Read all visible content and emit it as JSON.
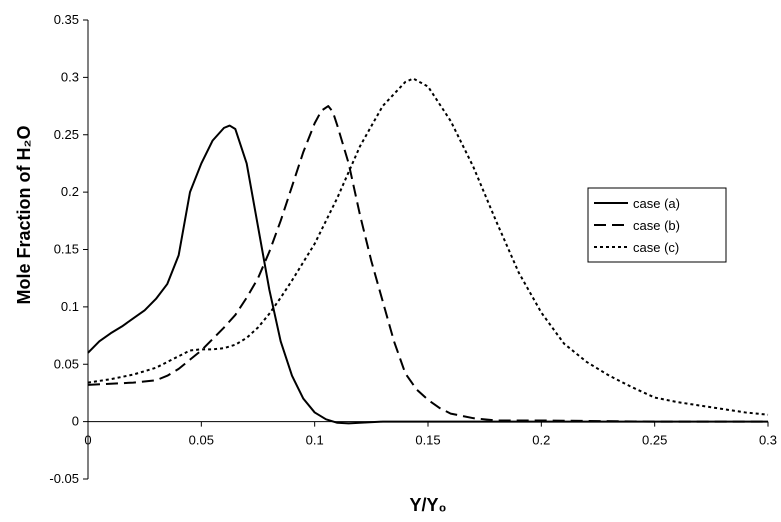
{
  "chart_data": {
    "type": "line",
    "xlabel": "Y/Y₀",
    "ylabel": "Mole Fraction of H₂O",
    "xlim": [
      0,
      0.3
    ],
    "ylim": [
      -0.05,
      0.35
    ],
    "x_ticks": [
      "0",
      "0.05",
      "0.1",
      "0.15",
      "0.2",
      "0.25",
      "0.3"
    ],
    "y_ticks": [
      "-0.05",
      "0",
      "0.05",
      "0.1",
      "0.15",
      "0.2",
      "0.25",
      "0.3",
      "0.35"
    ],
    "grid": false,
    "legend_position": "right",
    "series": [
      {
        "name": "case (a)",
        "style": "solid",
        "points": [
          [
            0,
            0.06
          ],
          [
            0.005,
            0.07
          ],
          [
            0.01,
            0.077
          ],
          [
            0.015,
            0.083
          ],
          [
            0.02,
            0.09
          ],
          [
            0.025,
            0.097
          ],
          [
            0.03,
            0.107
          ],
          [
            0.035,
            0.12
          ],
          [
            0.04,
            0.145
          ],
          [
            0.045,
            0.2
          ],
          [
            0.05,
            0.225
          ],
          [
            0.055,
            0.245
          ],
          [
            0.06,
            0.256
          ],
          [
            0.0625,
            0.258
          ],
          [
            0.065,
            0.255
          ],
          [
            0.07,
            0.225
          ],
          [
            0.075,
            0.17
          ],
          [
            0.08,
            0.115
          ],
          [
            0.085,
            0.07
          ],
          [
            0.09,
            0.04
          ],
          [
            0.095,
            0.02
          ],
          [
            0.1,
            0.008
          ],
          [
            0.105,
            0.002
          ],
          [
            0.11,
            -0.001
          ],
          [
            0.115,
            -0.0015
          ],
          [
            0.12,
            -0.001
          ],
          [
            0.13,
            0
          ],
          [
            0.15,
            0
          ],
          [
            0.2,
            0
          ],
          [
            0.25,
            0
          ],
          [
            0.3,
            0
          ]
        ]
      },
      {
        "name": "case (b)",
        "style": "dashed",
        "points": [
          [
            0,
            0.032
          ],
          [
            0.01,
            0.033
          ],
          [
            0.02,
            0.034
          ],
          [
            0.03,
            0.036
          ],
          [
            0.035,
            0.04
          ],
          [
            0.04,
            0.046
          ],
          [
            0.045,
            0.054
          ],
          [
            0.05,
            0.062
          ],
          [
            0.055,
            0.072
          ],
          [
            0.06,
            0.082
          ],
          [
            0.065,
            0.093
          ],
          [
            0.07,
            0.108
          ],
          [
            0.075,
            0.125
          ],
          [
            0.08,
            0.148
          ],
          [
            0.085,
            0.175
          ],
          [
            0.09,
            0.205
          ],
          [
            0.095,
            0.235
          ],
          [
            0.1,
            0.26
          ],
          [
            0.103,
            0.271
          ],
          [
            0.106,
            0.275
          ],
          [
            0.108,
            0.27
          ],
          [
            0.11,
            0.258
          ],
          [
            0.115,
            0.225
          ],
          [
            0.12,
            0.18
          ],
          [
            0.125,
            0.14
          ],
          [
            0.13,
            0.105
          ],
          [
            0.135,
            0.07
          ],
          [
            0.14,
            0.042
          ],
          [
            0.145,
            0.028
          ],
          [
            0.15,
            0.019
          ],
          [
            0.155,
            0.012
          ],
          [
            0.16,
            0.007
          ],
          [
            0.17,
            0.003
          ],
          [
            0.18,
            0.001
          ],
          [
            0.2,
            0.001
          ],
          [
            0.25,
            0
          ],
          [
            0.3,
            0
          ]
        ]
      },
      {
        "name": "case (c)",
        "style": "dotted",
        "points": [
          [
            0,
            0.034
          ],
          [
            0.01,
            0.037
          ],
          [
            0.02,
            0.041
          ],
          [
            0.03,
            0.047
          ],
          [
            0.04,
            0.057
          ],
          [
            0.045,
            0.062
          ],
          [
            0.05,
            0.063
          ],
          [
            0.055,
            0.063
          ],
          [
            0.06,
            0.064
          ],
          [
            0.065,
            0.067
          ],
          [
            0.07,
            0.073
          ],
          [
            0.075,
            0.082
          ],
          [
            0.08,
            0.094
          ],
          [
            0.085,
            0.108
          ],
          [
            0.09,
            0.123
          ],
          [
            0.1,
            0.155
          ],
          [
            0.11,
            0.195
          ],
          [
            0.12,
            0.24
          ],
          [
            0.13,
            0.275
          ],
          [
            0.14,
            0.296
          ],
          [
            0.1435,
            0.299
          ],
          [
            0.15,
            0.292
          ],
          [
            0.16,
            0.262
          ],
          [
            0.17,
            0.222
          ],
          [
            0.18,
            0.175
          ],
          [
            0.19,
            0.13
          ],
          [
            0.2,
            0.095
          ],
          [
            0.21,
            0.068
          ],
          [
            0.22,
            0.052
          ],
          [
            0.23,
            0.04
          ],
          [
            0.24,
            0.03
          ],
          [
            0.25,
            0.021
          ],
          [
            0.26,
            0.017
          ],
          [
            0.27,
            0.014
          ],
          [
            0.28,
            0.011
          ],
          [
            0.29,
            0.008
          ],
          [
            0.3,
            0.006
          ]
        ]
      }
    ]
  }
}
